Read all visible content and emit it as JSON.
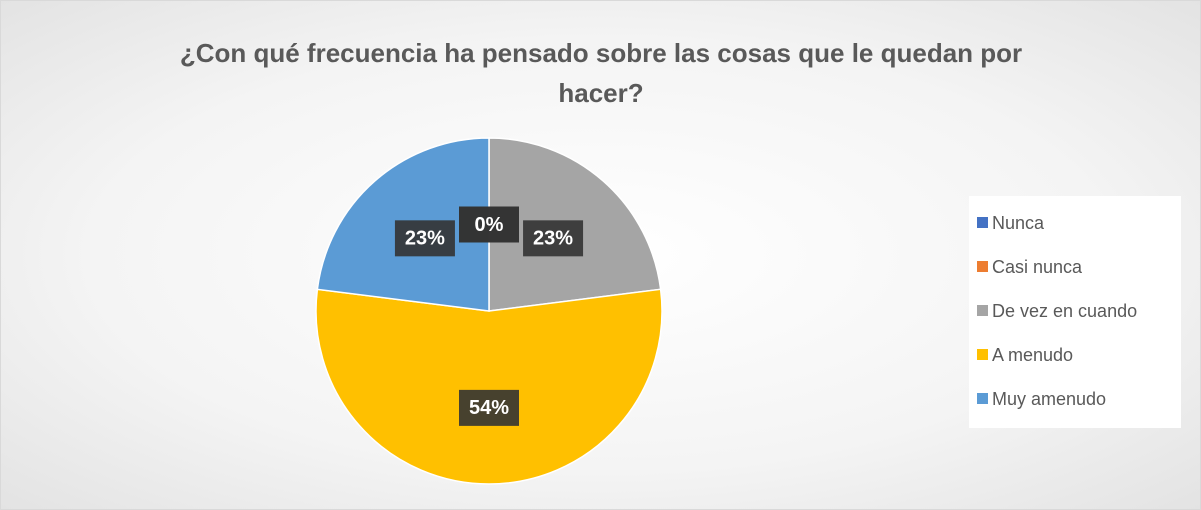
{
  "chart_data": {
    "type": "pie",
    "title": "¿Con qué frecuencia ha pensado sobre las cosas que le quedan por hacer?",
    "categories": [
      "Nunca",
      "Casi nunca",
      "De vez en cuando",
      "A menudo",
      "Muy amenudo"
    ],
    "values": [
      0,
      0,
      23,
      54,
      23
    ],
    "value_labels": [
      "0%",
      "0%",
      "23%",
      "54%",
      "23%"
    ],
    "colors": [
      "#4472c4",
      "#ed7d31",
      "#a5a5a5",
      "#ffc000",
      "#5b9bd5"
    ],
    "legend": "right"
  }
}
